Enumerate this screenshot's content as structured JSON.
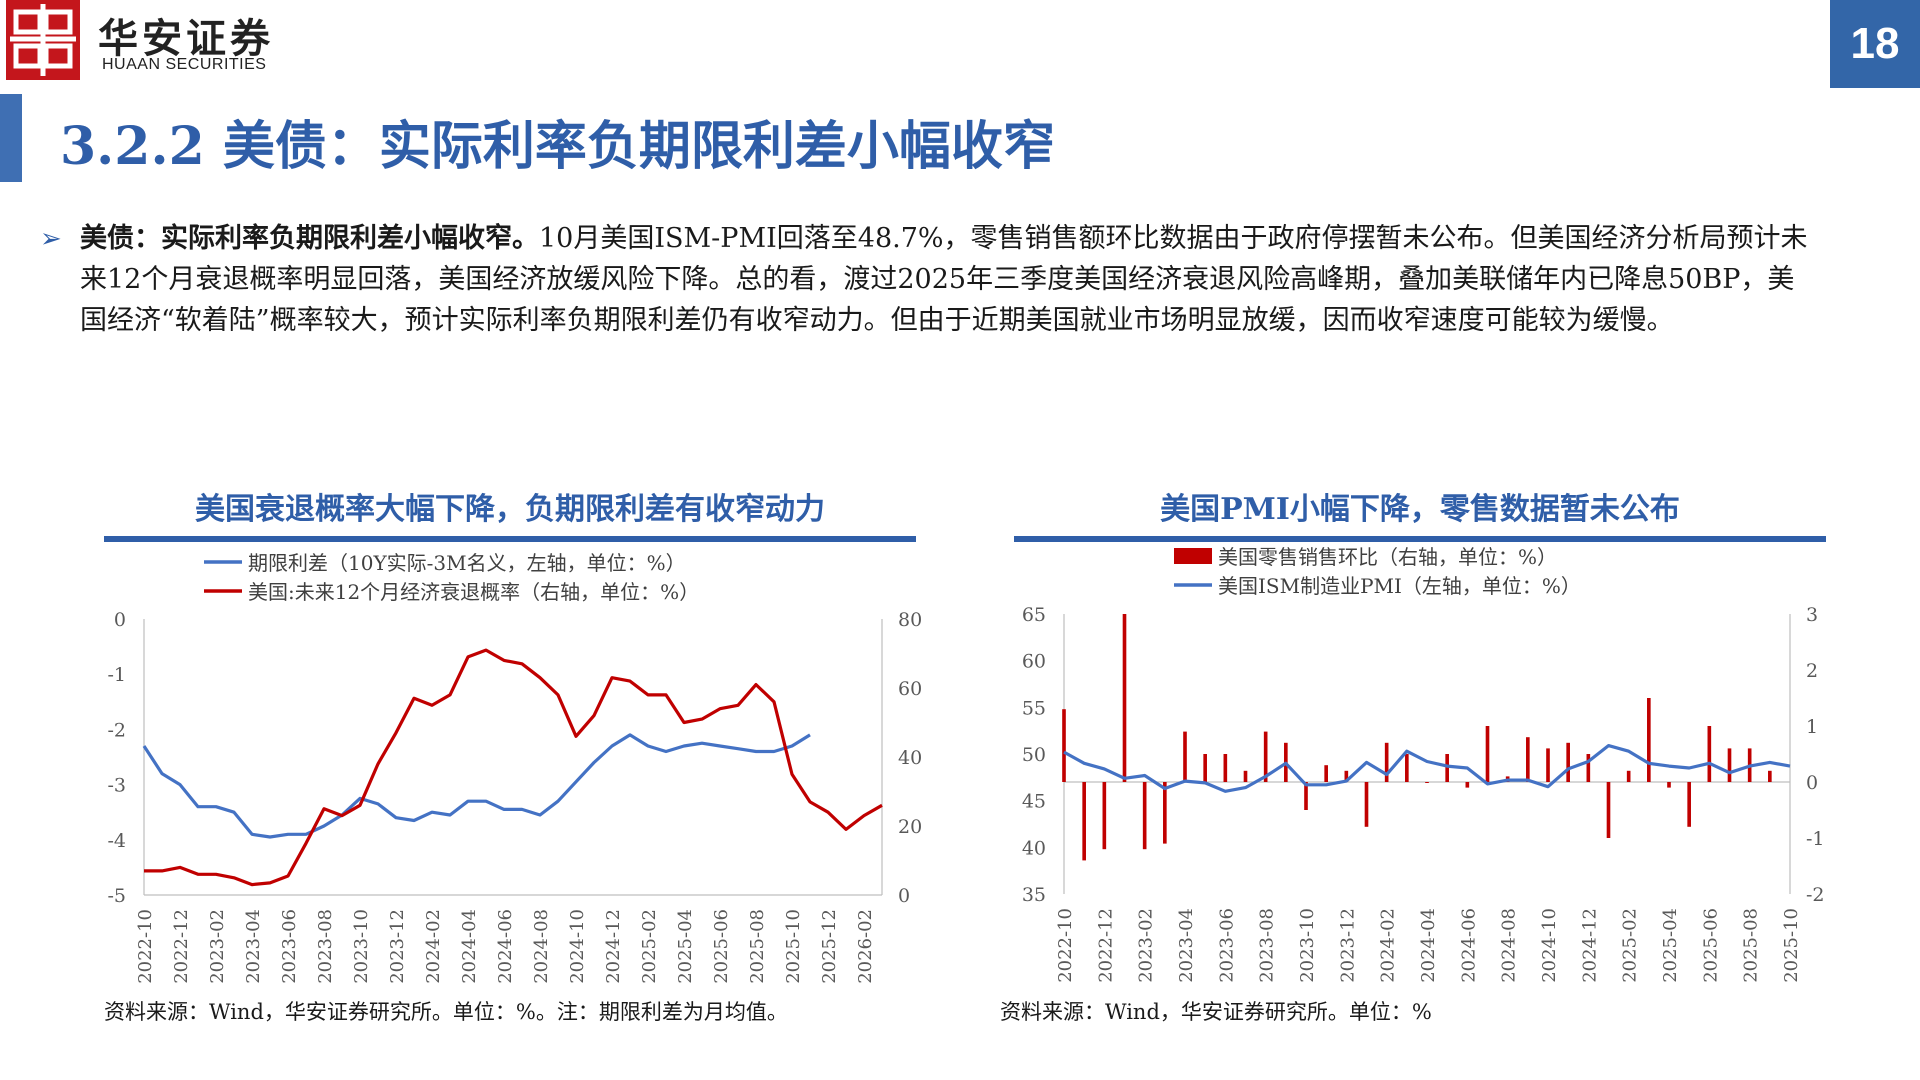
{
  "header": {
    "logo_cn": "华安证券",
    "logo_en": "HUAAN SECURITIES",
    "page_number": "18",
    "title": "3.2.2 美债：实际利率负期限利差小幅收窄",
    "brand_red": "#c4161c",
    "brand_blue": "#2f5ea8"
  },
  "body": {
    "bullet_icon": "triangle-bullet-icon",
    "lead": "美债：实际利率负期限利差小幅收窄。",
    "text": "10月美国ISM-PMI回落至48.7%，零售销售额环比数据由于政府停摆暂未公布。但美国经济分析局预计未来12个月衰退概率明显回落，美国经济放缓风险下降。总的看，渡过2025年三季度美国经济衰退风险高峰期，叠加美联储年内已降息50BP，美国经济“软着陆”概率较大，预计实际利率负期限利差仍有收窄动力。但由于近期美国就业市场明显放缓，因而收窄速度可能较为缓慢。"
  },
  "left_panel": {
    "title": "美国衰退概率大幅下降，负期限利差有收窄动力",
    "source": "资料来源：Wind，华安证券研究所。单位：%。注：期限利差为月均值。"
  },
  "right_panel": {
    "title": "美国PMI小幅下降，零售数据暂未公布",
    "source": "资料来源：Wind，华安证券研究所。单位：%"
  },
  "chart_data": [
    {
      "type": "line",
      "x_tick_labels": [
        "2022-10",
        "2022-12",
        "2023-02",
        "2023-04",
        "2023-06",
        "2023-08",
        "2023-10",
        "2023-12",
        "2024-02",
        "2024-04",
        "2024-06",
        "2024-08",
        "2024-10",
        "2024-12",
        "2025-02",
        "2025-04",
        "2025-06",
        "2025-08",
        "2025-10",
        "2025-12",
        "2026-02"
      ],
      "x_start": "2022-10",
      "x_end": "2026-03",
      "y_left_lim": [
        -5,
        0
      ],
      "y_left_ticks": [
        -5,
        -4,
        -3,
        -2,
        -1,
        0
      ],
      "y_right_lim": [
        0,
        80
      ],
      "y_right_ticks": [
        0,
        20,
        40,
        60,
        80
      ],
      "grid": false,
      "legend_position": "top",
      "series": [
        {
          "name": "期限利差（10Y实际-3M名义，左轴，单位：%）",
          "axis": "left",
          "color": "#4472c4",
          "x": [
            "2022-10",
            "2022-11",
            "2022-12",
            "2023-01",
            "2023-02",
            "2023-03",
            "2023-04",
            "2023-05",
            "2023-06",
            "2023-07",
            "2023-08",
            "2023-09",
            "2023-10",
            "2023-11",
            "2023-12",
            "2024-01",
            "2024-02",
            "2024-03",
            "2024-04",
            "2024-05",
            "2024-06",
            "2024-07",
            "2024-08",
            "2024-09",
            "2024-10",
            "2024-11",
            "2024-12",
            "2025-01",
            "2025-02",
            "2025-03",
            "2025-04",
            "2025-05",
            "2025-06",
            "2025-07",
            "2025-08",
            "2025-09",
            "2025-10",
            "2025-11"
          ],
          "values": [
            -2.3,
            -2.8,
            -3.0,
            -3.4,
            -3.4,
            -3.5,
            -3.9,
            -3.95,
            -3.9,
            -3.9,
            -3.75,
            -3.55,
            -3.25,
            -3.35,
            -3.6,
            -3.65,
            -3.5,
            -3.55,
            -3.3,
            -3.3,
            -3.45,
            -3.45,
            -3.55,
            -3.3,
            -2.95,
            -2.6,
            -2.3,
            -2.1,
            -2.3,
            -2.4,
            -2.3,
            -2.25,
            -2.3,
            -2.35,
            -2.4,
            -2.4,
            -2.3,
            -2.1
          ]
        },
        {
          "name": "美国:未来12个月经济衰退概率（右轴，单位：%）",
          "axis": "right",
          "color": "#c00000",
          "x": [
            "2022-10",
            "2022-11",
            "2022-12",
            "2023-01",
            "2023-02",
            "2023-03",
            "2023-04",
            "2023-05",
            "2023-06",
            "2023-07",
            "2023-08",
            "2023-09",
            "2023-10",
            "2023-11",
            "2023-12",
            "2024-01",
            "2024-02",
            "2024-03",
            "2024-04",
            "2024-05",
            "2024-06",
            "2024-07",
            "2024-08",
            "2024-09",
            "2024-10",
            "2024-11",
            "2024-12",
            "2025-01",
            "2025-02",
            "2025-03",
            "2025-04",
            "2025-05",
            "2025-06",
            "2025-07",
            "2025-08",
            "2025-09",
            "2025-10",
            "2025-11",
            "2025-12",
            "2026-01",
            "2026-02",
            "2026-03"
          ],
          "values": [
            7,
            7,
            8,
            6,
            6,
            5,
            3,
            3.5,
            5.5,
            15,
            25,
            23,
            26,
            38,
            47,
            57,
            55,
            58,
            69,
            71,
            68,
            67,
            63,
            58,
            46,
            52,
            63,
            62,
            58,
            58,
            50,
            51,
            54,
            55,
            61,
            56,
            35,
            27,
            24,
            19,
            23,
            26
          ]
        }
      ]
    },
    {
      "type": "bar",
      "x_tick_labels": [
        "2022-10",
        "2022-12",
        "2023-02",
        "2023-04",
        "2023-06",
        "2023-08",
        "2023-10",
        "2023-12",
        "2024-02",
        "2024-04",
        "2024-06",
        "2024-08",
        "2024-10",
        "2024-12",
        "2025-02",
        "2025-04",
        "2025-06",
        "2025-08",
        "2025-10"
      ],
      "x_start": "2022-10",
      "x_end": "2025-10",
      "y_left_lim": [
        35,
        65
      ],
      "y_left_ticks": [
        35,
        40,
        45,
        50,
        55,
        60,
        65
      ],
      "y_right_lim": [
        -2,
        3
      ],
      "y_right_ticks": [
        -2,
        -1,
        0,
        1,
        2,
        3
      ],
      "grid": false,
      "legend_position": "top",
      "series": [
        {
          "name": "美国零售销售环比（右轴，单位：%）",
          "type": "bar",
          "axis": "right",
          "color": "#c00000",
          "x": [
            "2022-10",
            "2022-11",
            "2022-12",
            "2023-01",
            "2023-02",
            "2023-03",
            "2023-04",
            "2023-05",
            "2023-06",
            "2023-07",
            "2023-08",
            "2023-09",
            "2023-10",
            "2023-11",
            "2023-12",
            "2024-01",
            "2024-02",
            "2024-03",
            "2024-04",
            "2024-05",
            "2024-06",
            "2024-07",
            "2024-08",
            "2024-09",
            "2024-10",
            "2024-11",
            "2024-12",
            "2025-01",
            "2025-02",
            "2025-03",
            "2025-04",
            "2025-05",
            "2025-06",
            "2025-07",
            "2025-08",
            "2025-09"
          ],
          "values": [
            1.3,
            -1.4,
            -1.2,
            3.0,
            -1.2,
            -1.1,
            0.9,
            0.5,
            0.5,
            0.2,
            0.9,
            0.7,
            -0.5,
            0.3,
            0.2,
            -0.8,
            0.7,
            0.5,
            0.0,
            0.5,
            -0.1,
            1.0,
            0.1,
            0.8,
            0.6,
            0.7,
            0.5,
            -1.0,
            0.2,
            1.5,
            -0.1,
            -0.8,
            1.0,
            0.6,
            0.6,
            0.2
          ]
        },
        {
          "name": "美国ISM制造业PMI（左轴，单位：%）",
          "type": "line",
          "axis": "left",
          "color": "#4472c4",
          "x": [
            "2022-10",
            "2022-11",
            "2022-12",
            "2023-01",
            "2023-02",
            "2023-03",
            "2023-04",
            "2023-05",
            "2023-06",
            "2023-07",
            "2023-08",
            "2023-09",
            "2023-10",
            "2023-11",
            "2023-12",
            "2024-01",
            "2024-02",
            "2024-03",
            "2024-04",
            "2024-05",
            "2024-06",
            "2024-07",
            "2024-08",
            "2024-09",
            "2024-10",
            "2024-11",
            "2024-12",
            "2025-01",
            "2025-02",
            "2025-03",
            "2025-04",
            "2025-05",
            "2025-06",
            "2025-07",
            "2025-08",
            "2025-09",
            "2025-10"
          ],
          "values": [
            50.2,
            49.0,
            48.4,
            47.4,
            47.7,
            46.3,
            47.1,
            46.9,
            46.0,
            46.4,
            47.6,
            49.0,
            46.7,
            46.7,
            47.1,
            49.1,
            47.8,
            50.3,
            49.2,
            48.7,
            48.5,
            46.8,
            47.2,
            47.2,
            46.5,
            48.4,
            49.2,
            50.9,
            50.3,
            49.0,
            48.7,
            48.5,
            49.0,
            48.0,
            48.7,
            49.1,
            48.7
          ]
        }
      ]
    }
  ]
}
